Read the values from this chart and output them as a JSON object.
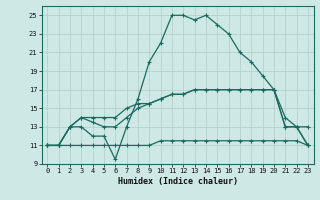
{
  "xlabel": "Humidex (Indice chaleur)",
  "xlim": [
    -0.5,
    23.5
  ],
  "ylim": [
    9,
    26
  ],
  "yticks": [
    9,
    11,
    13,
    15,
    17,
    19,
    21,
    23,
    25
  ],
  "xticks": [
    0,
    1,
    2,
    3,
    4,
    5,
    6,
    7,
    8,
    9,
    10,
    11,
    12,
    13,
    14,
    15,
    16,
    17,
    18,
    19,
    20,
    21,
    22,
    23
  ],
  "bg_color": "#cde8e5",
  "grid_color": "#b0ceca",
  "line_color": "#1a6b5e",
  "line1_x": [
    0,
    1,
    2,
    3,
    4,
    5,
    6,
    7,
    8,
    9,
    10,
    11,
    12,
    13,
    14,
    15,
    16,
    17,
    18,
    19,
    20,
    21,
    22,
    23
  ],
  "line1_y": [
    11,
    11,
    13,
    13,
    12,
    12,
    9.5,
    13,
    16,
    20,
    22,
    25,
    25,
    24.5,
    25,
    24,
    23,
    21,
    20,
    18.5,
    17,
    13,
    13,
    13
  ],
  "line2_x": [
    0,
    1,
    2,
    3,
    4,
    5,
    6,
    7,
    8,
    9,
    10,
    11,
    12,
    13,
    14,
    15,
    16,
    17,
    18,
    19,
    20,
    21,
    22,
    23
  ],
  "line2_y": [
    11,
    11,
    13,
    14,
    13.5,
    13,
    13,
    14,
    15,
    15.5,
    16,
    16.5,
    16.5,
    17,
    17,
    17,
    17,
    17,
    17,
    17,
    17,
    13,
    13,
    11
  ],
  "line3_x": [
    0,
    1,
    2,
    3,
    4,
    5,
    6,
    7,
    8,
    9,
    10,
    11,
    12,
    13,
    14,
    15,
    16,
    17,
    18,
    19,
    20,
    21,
    22,
    23
  ],
  "line3_y": [
    11,
    11,
    13,
    14,
    14,
    14,
    14,
    15,
    15.5,
    15.5,
    16,
    16.5,
    16.5,
    17,
    17,
    17,
    17,
    17,
    17,
    17,
    17,
    14,
    13,
    11
  ],
  "line4_x": [
    0,
    1,
    2,
    3,
    4,
    5,
    6,
    7,
    8,
    9,
    10,
    11,
    12,
    13,
    14,
    15,
    16,
    17,
    18,
    19,
    20,
    21,
    22,
    23
  ],
  "line4_y": [
    11,
    11,
    11,
    11,
    11,
    11,
    11,
    11,
    11,
    11,
    11.5,
    11.5,
    11.5,
    11.5,
    11.5,
    11.5,
    11.5,
    11.5,
    11.5,
    11.5,
    11.5,
    11.5,
    11.5,
    11
  ],
  "marker": "+",
  "markersize": 3,
  "linewidth": 0.9
}
